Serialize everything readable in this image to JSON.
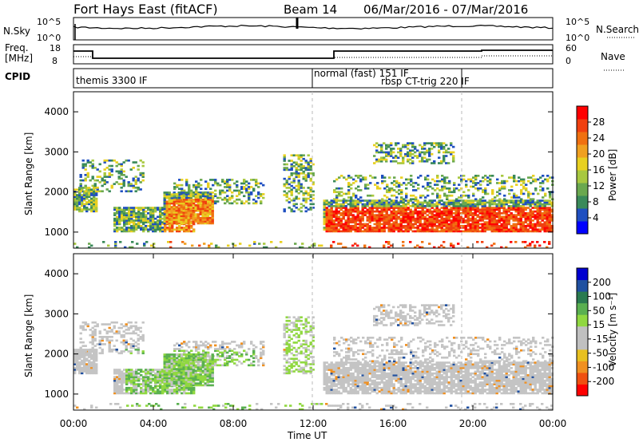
{
  "header": {
    "title": "Fort Hays East (fitACF)",
    "beam": "Beam 14",
    "date_range": "06/Mar/2016 - 07/Mar/2016"
  },
  "panels": {
    "sky": {
      "left_label": "N.Sky",
      "left_ticks": [
        "10^5",
        "10^0"
      ],
      "right_ticks": [
        "10^5",
        "10^0"
      ],
      "right_label": "N.Search"
    },
    "freq": {
      "left_label_line1": "Freq.",
      "left_label_line2": "[MHz]",
      "left_ticks": [
        "18",
        "8"
      ],
      "right_ticks": [
        "60",
        "0"
      ],
      "right_label": "Nave"
    },
    "cpid": {
      "label": "CPID",
      "segments": [
        "themis 3300 IF",
        "normal (fast) 151 IF",
        "rbsp CT-trig 220 IF"
      ]
    }
  },
  "chart_data": [
    {
      "type": "heatmap",
      "name": "power",
      "ylabel": "Slant Range [km]",
      "yticks": [
        1000,
        2000,
        3000,
        4000
      ],
      "ylim": [
        600,
        4500
      ],
      "xlim_hours": [
        0,
        24
      ],
      "colorbar": {
        "label": "Power [dB]",
        "ticks": [
          "4",
          "8",
          "12",
          "16",
          "20",
          "24",
          "28"
        ],
        "colors": [
          "#0000ff",
          "#1f4fc0",
          "#3a8a5a",
          "#6aa84f",
          "#a8c840",
          "#e8d020",
          "#f0a020",
          "#f07010",
          "#f04010",
          "#ff0000"
        ]
      }
    },
    {
      "type": "heatmap",
      "name": "velocity",
      "ylabel": "Slant Range [km]",
      "yticks": [
        1000,
        2000,
        3000,
        4000
      ],
      "ylim": [
        600,
        4500
      ],
      "xlim_hours": [
        0,
        24
      ],
      "colorbar": {
        "label": "Velocity [m s⁻¹]",
        "ticks": [
          "200",
          "100",
          "50",
          "15",
          "-15",
          "-50",
          "-100",
          "-200"
        ],
        "colors": [
          "#0000d0",
          "#2050a0",
          "#2a7a50",
          "#5ab050",
          "#90d840",
          "#c0c0c0",
          "#c0c0c0",
          "#e8c020",
          "#f09020",
          "#f05010",
          "#ff0000"
        ]
      }
    }
  ],
  "xaxis": {
    "ticks": [
      "00:00",
      "04:00",
      "08:00",
      "12:00",
      "16:00",
      "20:00",
      "00:00"
    ],
    "label": "Time UT"
  }
}
